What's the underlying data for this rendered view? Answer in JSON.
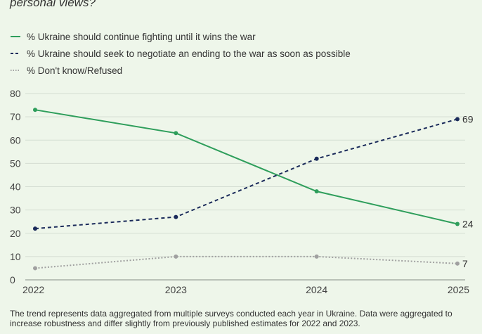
{
  "subtitle": "personal views?",
  "legend": [
    {
      "label": "% Ukraine should continue fighting until it wins the war",
      "style": "solid",
      "color": "#2e9e5b"
    },
    {
      "label": "% Ukraine should seek to negotiate an ending to the war as soon as possible",
      "style": "dashed",
      "color": "#1a2a5a"
    },
    {
      "label": "% Don't know/Refused",
      "style": "dotted",
      "color": "#a0a0a0"
    }
  ],
  "note": "The trend represents data aggregated from multiple surveys conducted each year in Ukraine. Data were aggregated to increase robustness and differ slightly from previously published estimates for 2022 and 2023.",
  "chart_data": {
    "type": "line",
    "x": [
      "2022",
      "2023",
      "2024",
      "2025"
    ],
    "ylim": [
      0,
      80
    ],
    "yticks": [
      0,
      10,
      20,
      30,
      40,
      50,
      60,
      70,
      80
    ],
    "grid": true,
    "series": [
      {
        "name": "% Ukraine should continue fighting until it wins the war",
        "values": [
          73,
          63,
          38,
          24
        ],
        "color": "#2e9e5b",
        "style": "solid",
        "end_label": "24"
      },
      {
        "name": "% Ukraine should seek to negotiate an ending to the war as soon as possible",
        "values": [
          22,
          27,
          52,
          69
        ],
        "color": "#1a2a5a",
        "style": "dashed",
        "end_label": "69"
      },
      {
        "name": "% Don't know/Refused",
        "values": [
          5,
          10,
          10,
          7
        ],
        "color": "#a0a0a0",
        "style": "dotted",
        "end_label": "7"
      }
    ]
  }
}
